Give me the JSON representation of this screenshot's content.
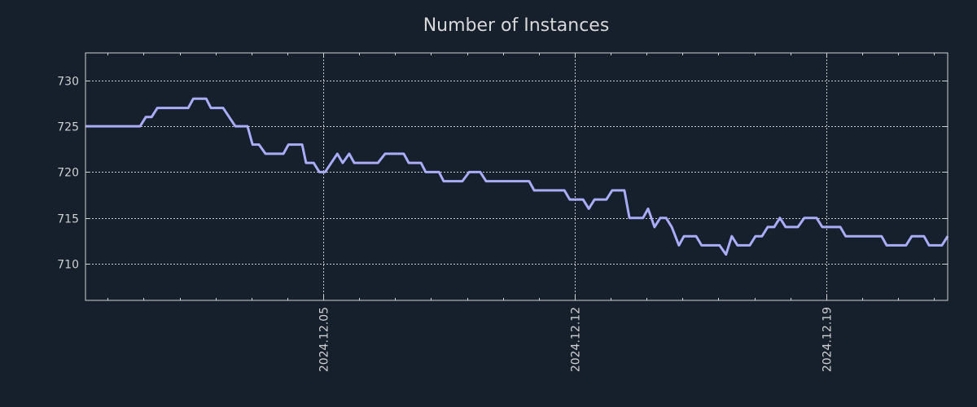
{
  "chart_data": {
    "type": "line",
    "title": "Number of Instances",
    "xlabel": "",
    "ylabel": "",
    "x_units": "days relative to 2024.12.05",
    "xlim": [
      -6.62,
      17.38
    ],
    "ylim": [
      706,
      733
    ],
    "grid": true,
    "legend": "none",
    "colors": {
      "background": "#161f2c",
      "line": "#a9acf7",
      "axis": "#d0d0d0",
      "grid": "#c8c8c8"
    },
    "x_ticks": [
      {
        "value": 0,
        "label": "2024.12.05"
      },
      {
        "value": 7,
        "label": "2024.12.12"
      },
      {
        "value": 14,
        "label": "2024.12.19"
      }
    ],
    "x_minor_tick_step": 1,
    "y_ticks": [
      {
        "value": 710,
        "label": "710"
      },
      {
        "value": 715,
        "label": "715"
      },
      {
        "value": 720,
        "label": "720"
      },
      {
        "value": 725,
        "label": "725"
      },
      {
        "value": 730,
        "label": "730"
      }
    ],
    "series": [
      {
        "name": "Number of Instances",
        "x": [
          -6.62,
          -5.1,
          -4.94,
          -4.78,
          -4.62,
          -3.76,
          -3.62,
          -3.26,
          -3.13,
          -2.79,
          -2.45,
          -2.11,
          -1.97,
          -1.79,
          -1.61,
          -1.11,
          -0.97,
          -0.59,
          -0.48,
          -0.27,
          -0.11,
          0.05,
          0.39,
          0.54,
          0.72,
          0.86,
          1.52,
          1.72,
          2.24,
          2.38,
          2.72,
          2.85,
          3.22,
          3.35,
          3.87,
          4.06,
          4.37,
          4.53,
          5.73,
          5.87,
          6.71,
          6.86,
          7.23,
          7.39,
          7.55,
          7.88,
          8.04,
          8.38,
          8.52,
          8.9,
          9.04,
          9.22,
          9.38,
          9.54,
          9.7,
          9.9,
          10.04,
          10.38,
          10.53,
          11.03,
          11.21,
          11.37,
          11.53,
          11.87,
          12.03,
          12.21,
          12.37,
          12.55,
          12.71,
          12.87,
          13.21,
          13.39,
          13.73,
          13.89,
          14.39,
          14.54,
          15.54,
          15.68,
          16.22,
          16.38,
          16.72,
          16.86,
          17.22,
          17.38
        ],
        "y": [
          725,
          725,
          726,
          726,
          727,
          727,
          728,
          728,
          727,
          727,
          725,
          725,
          723,
          723,
          722,
          722,
          723,
          723,
          721,
          721,
          720,
          720,
          722,
          721,
          722,
          721,
          721,
          722,
          722,
          721,
          721,
          720,
          720,
          719,
          719,
          720,
          720,
          719,
          719,
          718,
          718,
          717,
          717,
          716,
          717,
          717,
          718,
          718,
          715,
          715,
          716,
          714,
          715,
          715,
          714,
          712,
          713,
          713,
          712,
          712,
          711,
          713,
          712,
          712,
          713,
          713,
          714,
          714,
          715,
          714,
          714,
          715,
          715,
          714,
          714,
          713,
          713,
          712,
          712,
          713,
          713,
          712,
          712,
          713
        ]
      }
    ]
  }
}
